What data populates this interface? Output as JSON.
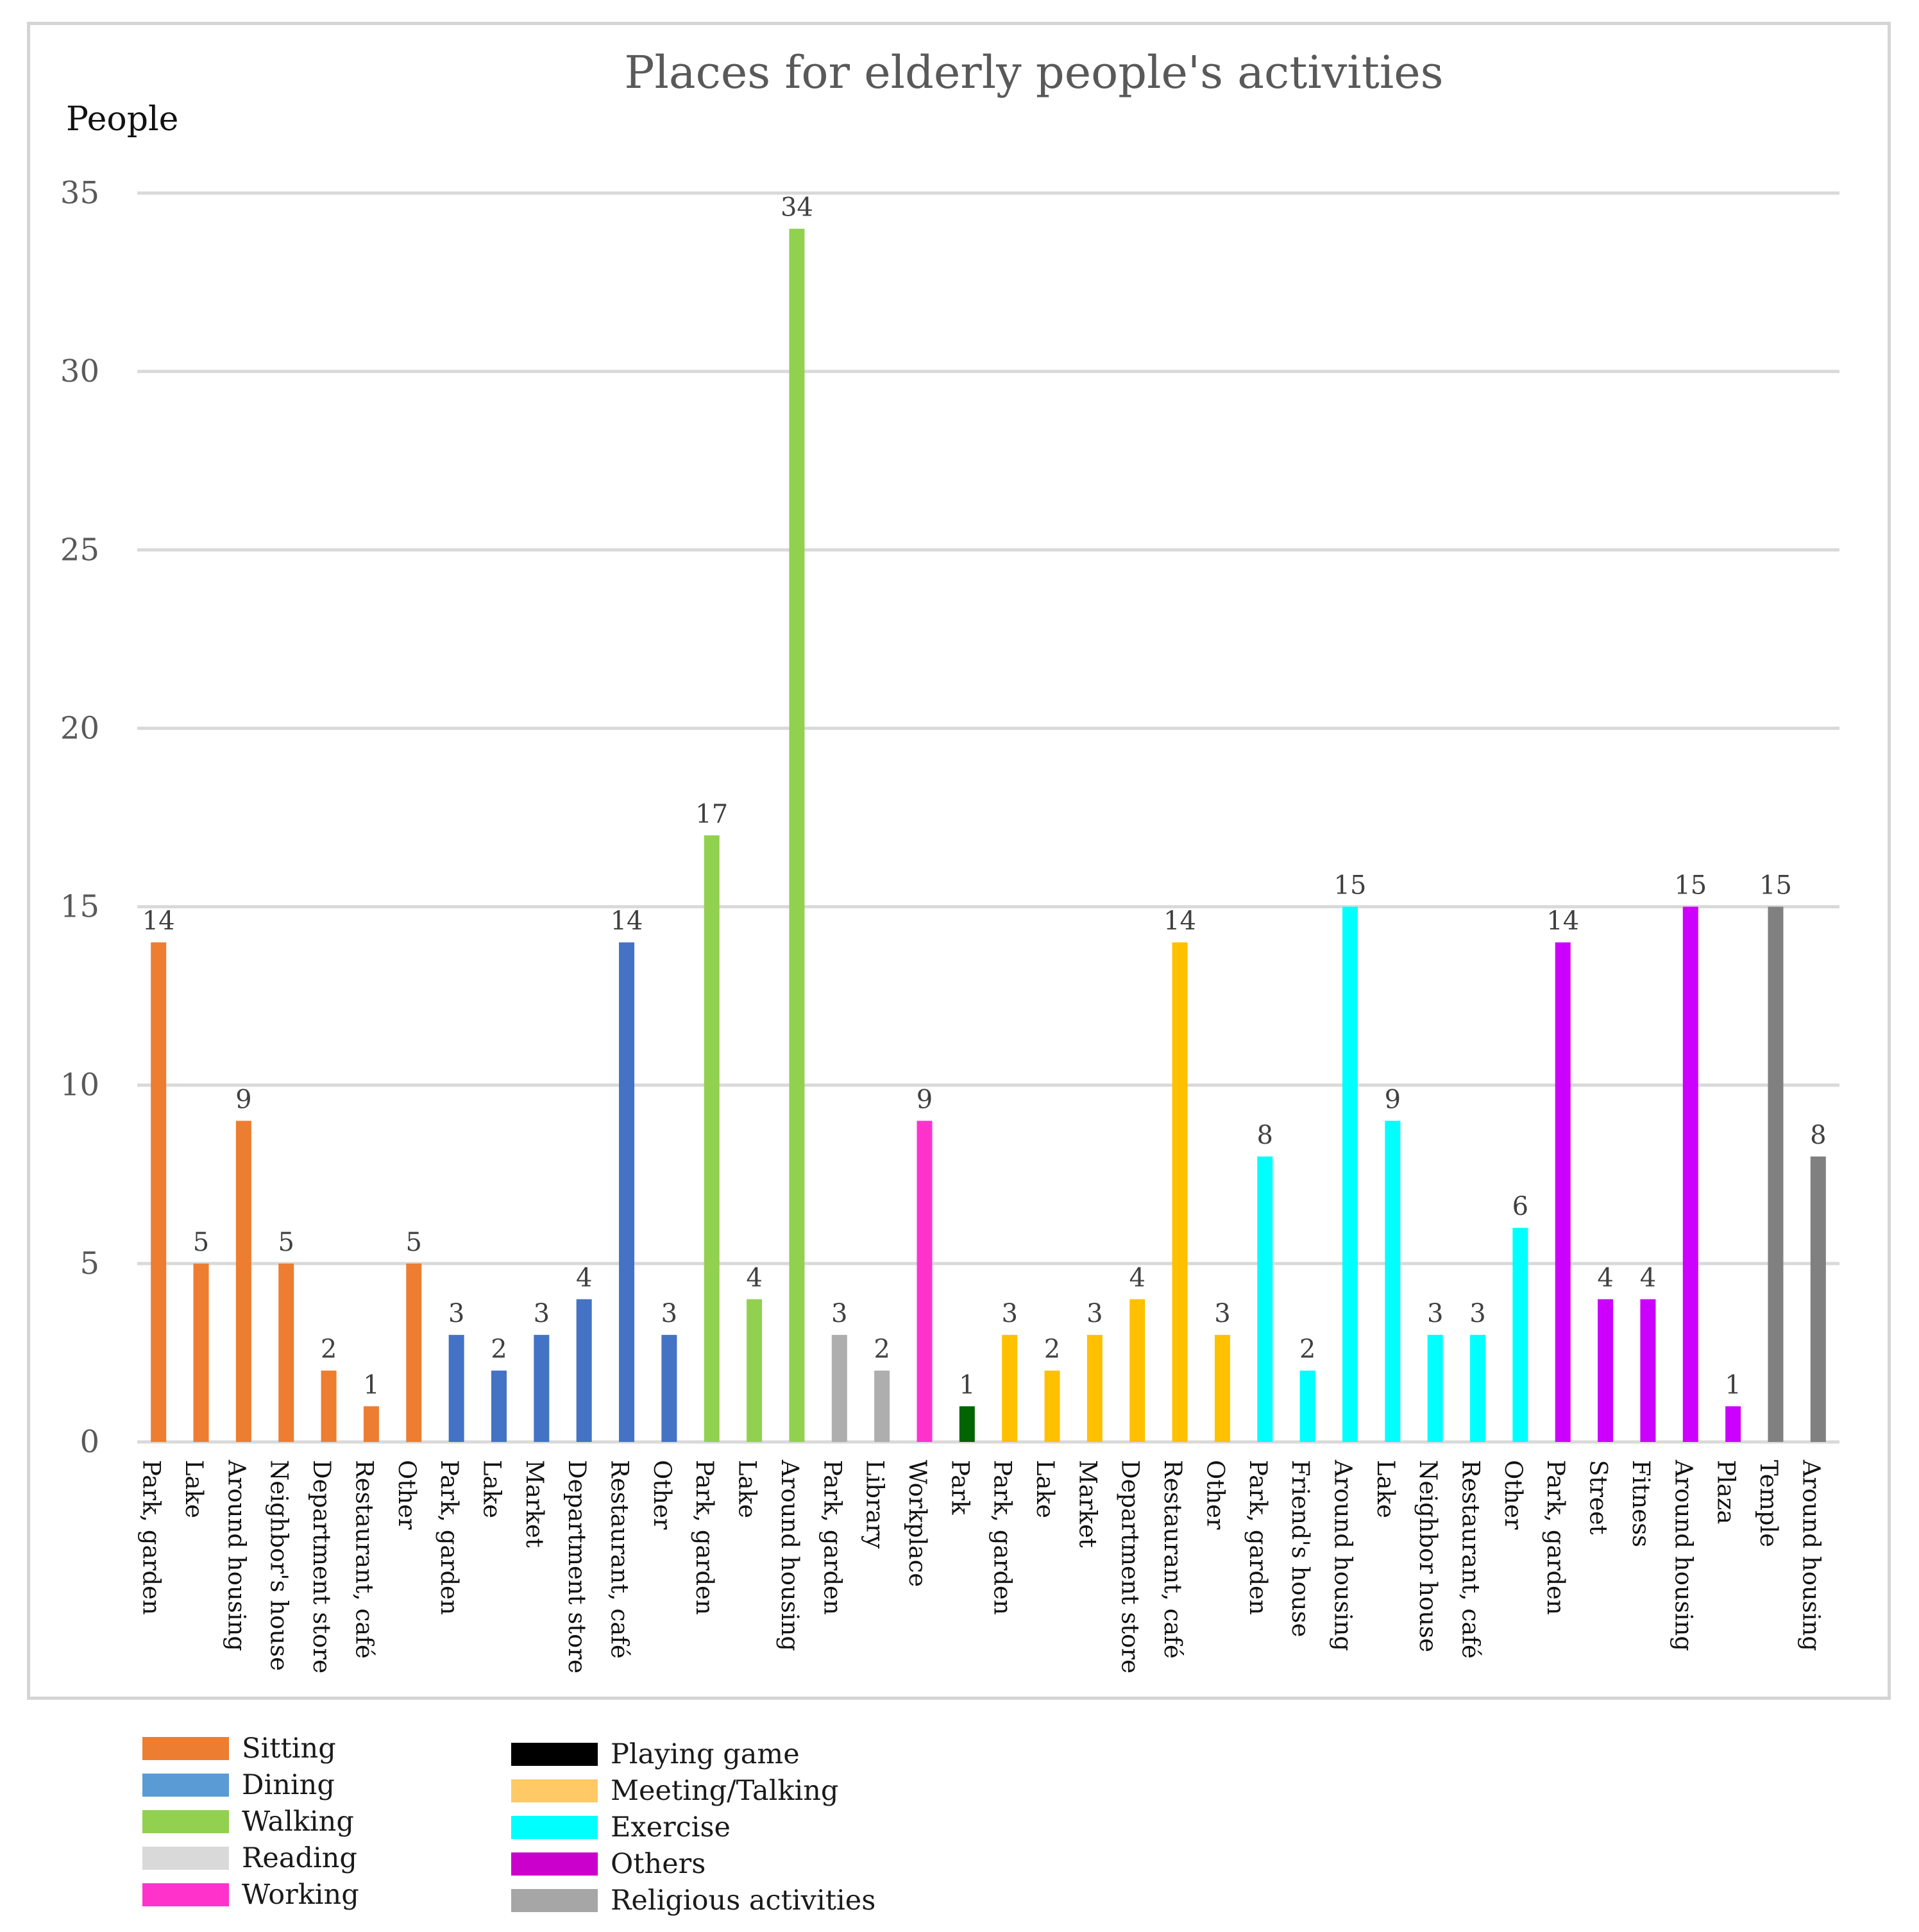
{
  "chart_data": {
    "type": "bar",
    "title": "Places for elderly people's activities",
    "ylabel": "People",
    "xlabel": "",
    "ylim": [
      0,
      35
    ],
    "yticks": [
      "0",
      "5",
      "10",
      "15",
      "20",
      "25",
      "30",
      "35"
    ],
    "ytick_values": [
      0,
      5,
      10,
      15,
      20,
      25,
      30,
      35
    ],
    "grid": true,
    "legend_position": "bottom-left",
    "categories": [
      {
        "label": "Park, garden",
        "value": 14,
        "group": "Sitting"
      },
      {
        "label": "Lake",
        "value": 5,
        "group": "Sitting"
      },
      {
        "label": "Around housing",
        "value": 9,
        "group": "Sitting"
      },
      {
        "label": "Neighbor's house",
        "value": 5,
        "group": "Sitting"
      },
      {
        "label": "Department store",
        "value": 2,
        "group": "Sitting"
      },
      {
        "label": "Restaurant, café",
        "value": 1,
        "group": "Sitting"
      },
      {
        "label": "Other",
        "value": 5,
        "group": "Sitting"
      },
      {
        "label": "Park, garden",
        "value": 3,
        "group": "Dining"
      },
      {
        "label": "Lake",
        "value": 2,
        "group": "Dining"
      },
      {
        "label": "Market",
        "value": 3,
        "group": "Dining"
      },
      {
        "label": "Department store",
        "value": 4,
        "group": "Dining"
      },
      {
        "label": "Restaurant, café",
        "value": 14,
        "group": "Dining"
      },
      {
        "label": "Other",
        "value": 3,
        "group": "Dining"
      },
      {
        "label": "Park, garden",
        "value": 17,
        "group": "Walking"
      },
      {
        "label": "Lake",
        "value": 4,
        "group": "Walking"
      },
      {
        "label": "Around housing",
        "value": 34,
        "group": "Walking"
      },
      {
        "label": "Park, garden",
        "value": 3,
        "group": "Reading"
      },
      {
        "label": "Library",
        "value": 2,
        "group": "Reading"
      },
      {
        "label": "Workplace",
        "value": 9,
        "group": "Working"
      },
      {
        "label": "Park",
        "value": 1,
        "group": "Playing game"
      },
      {
        "label": "Park, garden",
        "value": 3,
        "group": "Meeting/Talking"
      },
      {
        "label": "Lake",
        "value": 2,
        "group": "Meeting/Talking"
      },
      {
        "label": "Market",
        "value": 3,
        "group": "Meeting/Talking"
      },
      {
        "label": "Department store",
        "value": 4,
        "group": "Meeting/Talking"
      },
      {
        "label": "Restaurant, café",
        "value": 14,
        "group": "Meeting/Talking"
      },
      {
        "label": "Other",
        "value": 3,
        "group": "Meeting/Talking"
      },
      {
        "label": "Park, garden",
        "value": 8,
        "group": "Exercise"
      },
      {
        "label": "Friend's house",
        "value": 2,
        "group": "Exercise"
      },
      {
        "label": "Around housing",
        "value": 15,
        "group": "Exercise"
      },
      {
        "label": "Lake",
        "value": 9,
        "group": "Exercise"
      },
      {
        "label": "Neighbor house",
        "value": 3,
        "group": "Exercise"
      },
      {
        "label": "Restaurant, café",
        "value": 3,
        "group": "Exercise"
      },
      {
        "label": "Other",
        "value": 6,
        "group": "Exercise"
      },
      {
        "label": "Park, garden",
        "value": 14,
        "group": "Others"
      },
      {
        "label": "Street",
        "value": 4,
        "group": "Others"
      },
      {
        "label": "Fitness",
        "value": 4,
        "group": "Others"
      },
      {
        "label": "Around housing",
        "value": 15,
        "group": "Others"
      },
      {
        "label": "Plaza",
        "value": 1,
        "group": "Others"
      },
      {
        "label": "Temple",
        "value": 15,
        "group": "Religious activities"
      },
      {
        "label": "Around housing",
        "value": 8,
        "group": "Religious activities"
      }
    ],
    "bar_colors": {
      "Sitting": "#ed7d31",
      "Dining": "#4472c4",
      "Walking": "#92d050",
      "Reading": "#aeaeae",
      "Working": "#ff33cc",
      "Playing game": "#006400",
      "Meeting/Talking": "#ffc000",
      "Exercise": "#00ffff",
      "Others": "#cc00ff",
      "Religious activities": "#808080"
    },
    "legend": [
      {
        "label": "Sitting",
        "color": "#ed7d31"
      },
      {
        "label": "Dining",
        "color": "#5b9bd5"
      },
      {
        "label": "Walking",
        "color": "#92d050"
      },
      {
        "label": "Reading",
        "color": "#d9d9d9"
      },
      {
        "label": "Working",
        "color": "#ff33cc"
      },
      {
        "label": "Playing game",
        "color": "#000000"
      },
      {
        "label": "Meeting/Talking",
        "color": "#ffc966"
      },
      {
        "label": "Exercise",
        "color": "#00ffff"
      },
      {
        "label": "Others",
        "color": "#cc00cc"
      },
      {
        "label": "Religious activities",
        "color": "#a6a6a6"
      }
    ]
  }
}
